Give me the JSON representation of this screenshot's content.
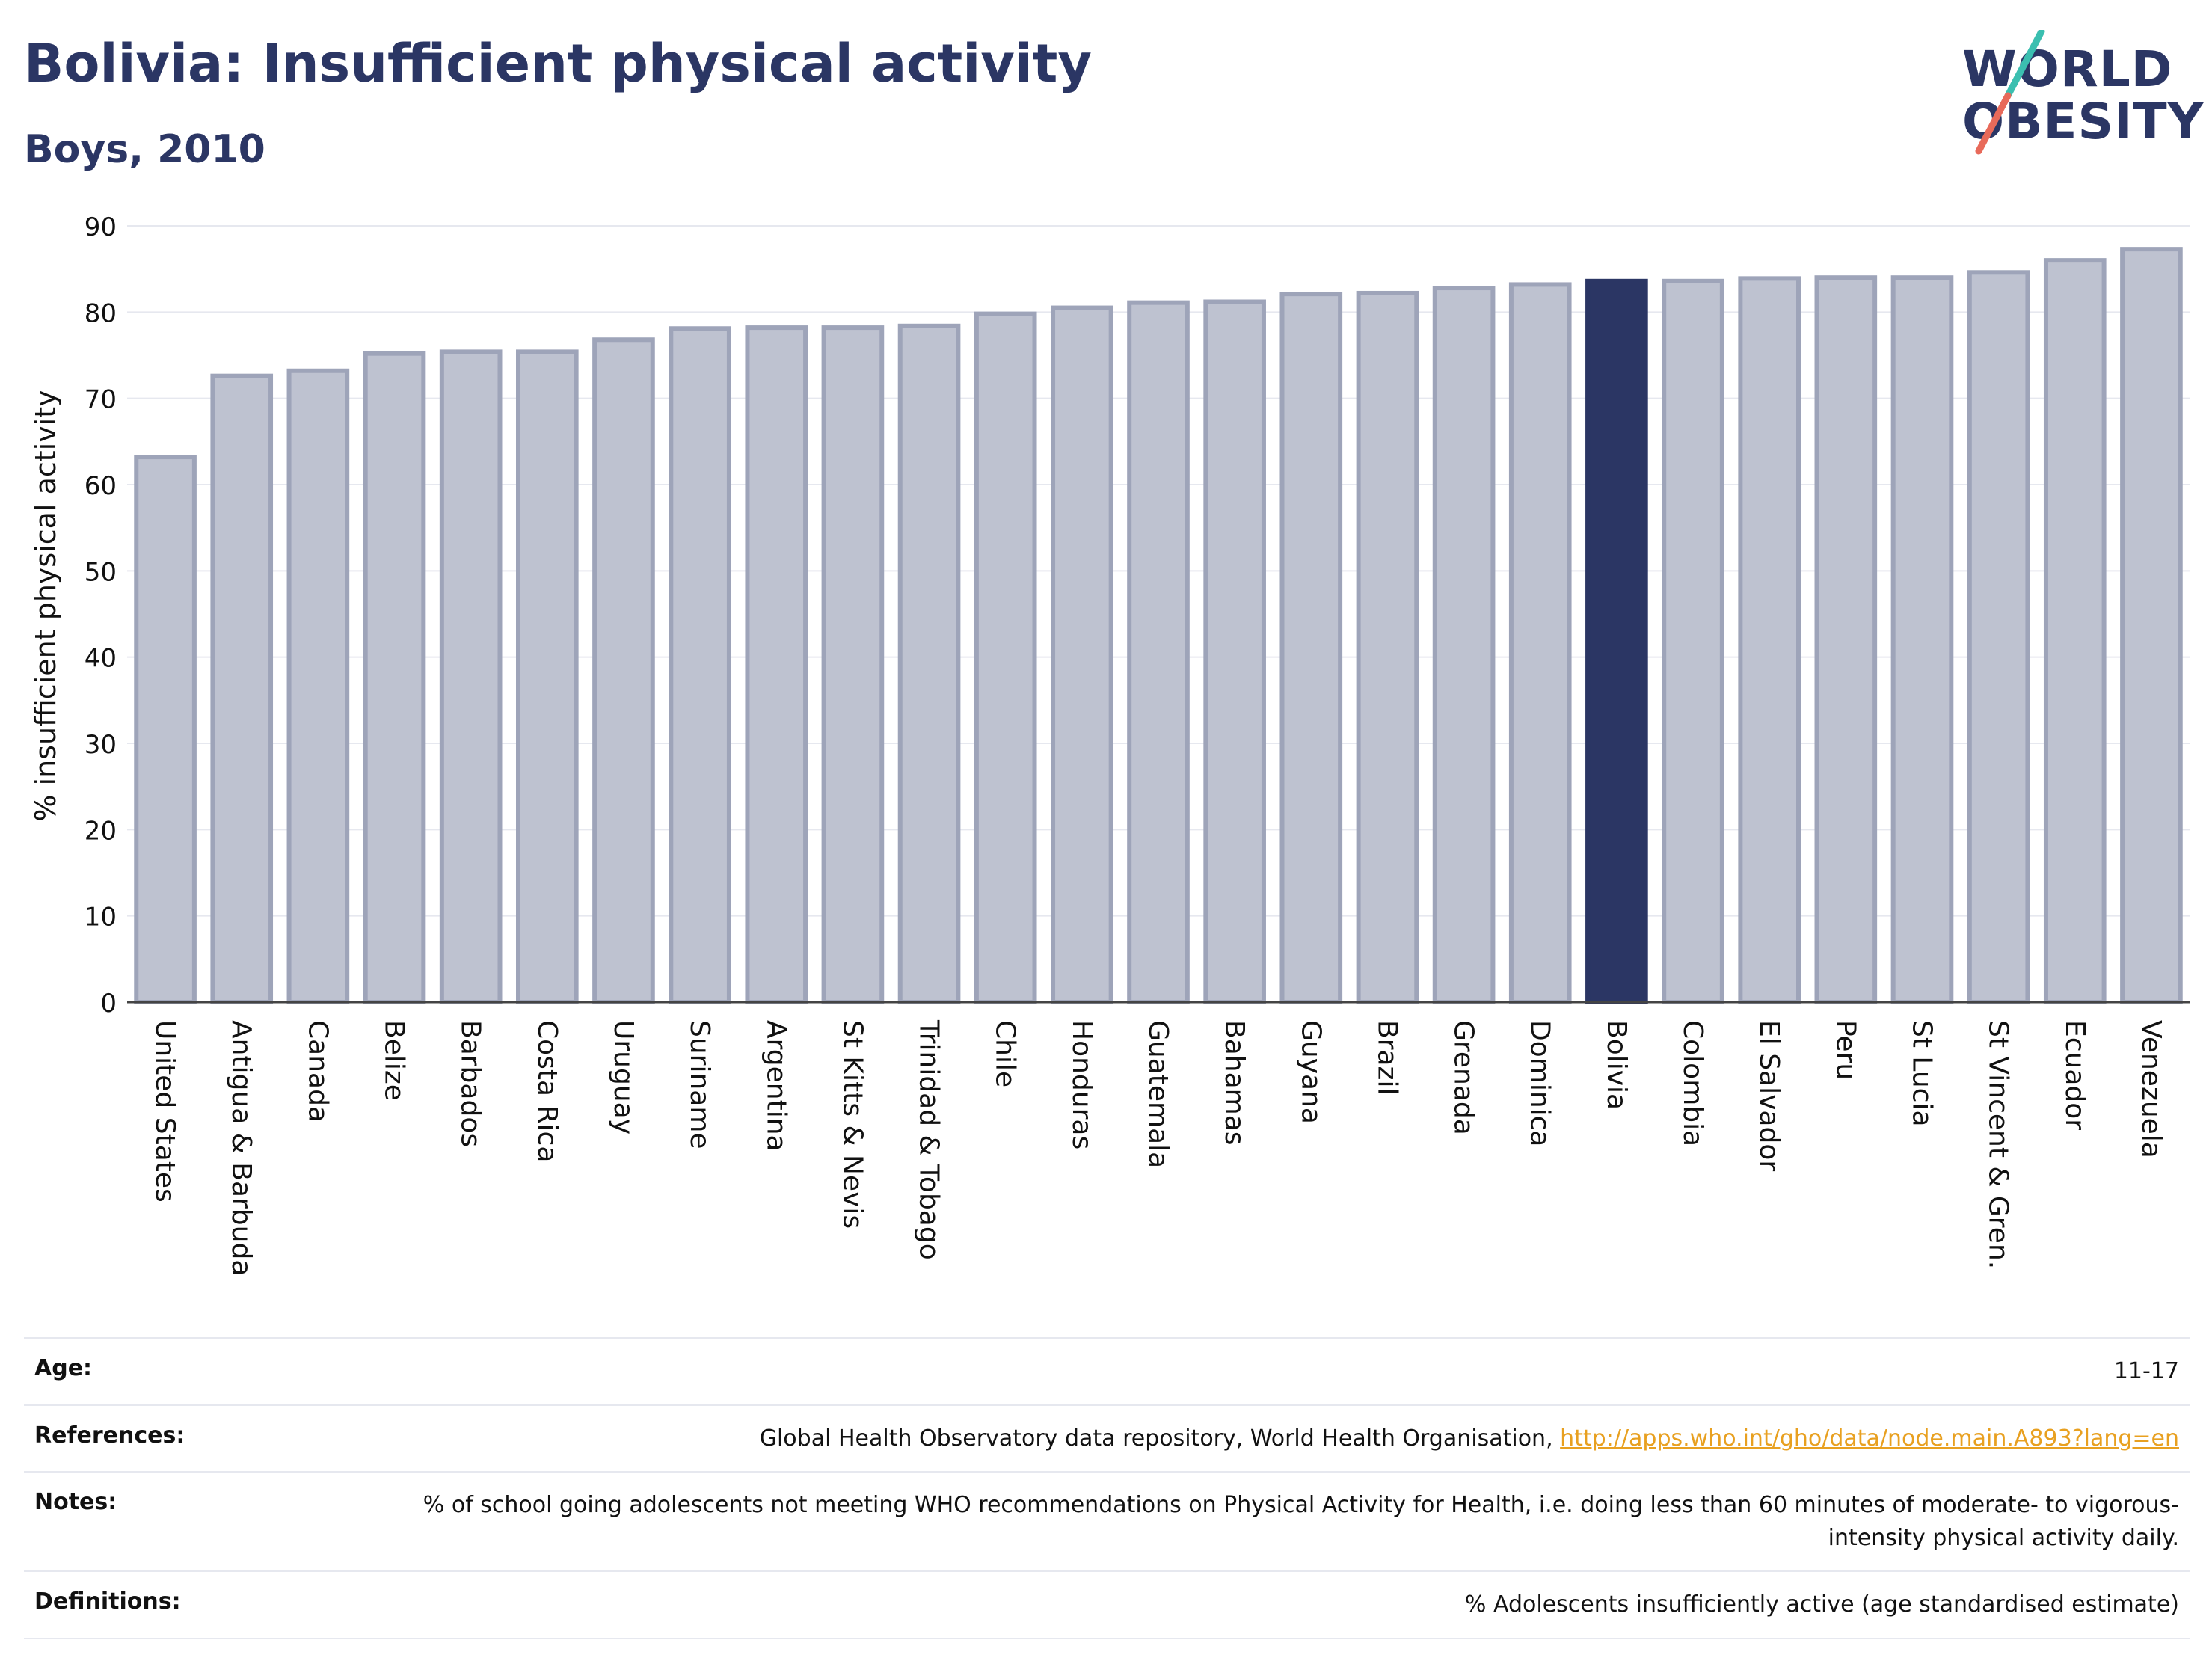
{
  "header": {
    "title": "Bolivia: Insufficient physical activity",
    "subtitle": "Boys, 2010"
  },
  "logo": {
    "line1": "WORLD",
    "line2": "OBESITY"
  },
  "chart_data": {
    "type": "bar",
    "ylabel": "% insufficient physical activity",
    "ylim": [
      0,
      90
    ],
    "yticks": [
      0,
      10,
      20,
      30,
      40,
      50,
      60,
      70,
      80,
      90
    ],
    "grid": true,
    "categories": [
      "United States",
      "Antigua & Barbuda",
      "Canada",
      "Belize",
      "Barbados",
      "Costa Rica",
      "Uruguay",
      "Suriname",
      "Argentina",
      "St Kitts & Nevis",
      "Trinidad & Tobago",
      "Chile",
      "Honduras",
      "Guatemala",
      "Bahamas",
      "Guyana",
      "Brazil",
      "Grenada",
      "Dominica",
      "Bolivia",
      "Colombia",
      "El Salvador",
      "Peru",
      "St Lucia",
      "St Vincent & Gren.",
      "Ecuador",
      "Venezuela"
    ],
    "values": [
      63.2,
      72.6,
      73.2,
      75.2,
      75.4,
      75.4,
      76.8,
      78.1,
      78.2,
      78.2,
      78.4,
      79.8,
      80.5,
      81.1,
      81.2,
      82.1,
      82.2,
      82.8,
      83.2,
      83.6,
      83.6,
      83.9,
      84.0,
      84.0,
      84.6,
      86.0,
      87.3
    ],
    "highlight": "Bolivia",
    "colors": {
      "bar": "#bec2d0",
      "bar_edge": "#9ea4b9",
      "highlight": "#2b3664"
    }
  },
  "info": {
    "age_label": "Age:",
    "age_value": "11-17",
    "references_label": "References:",
    "references_text": "Global Health Observatory data repository, World Health Organisation, ",
    "references_link": "http://apps.who.int/gho/data/node.main.A893?lang=en",
    "notes_label": "Notes:",
    "notes_value": "% of school going adolescents not meeting WHO recommendations on Physical Activity for Health, i.e. doing less than 60 minutes of moderate- to vigorous-intensity physical activity daily.",
    "definitions_label": "Definitions:",
    "definitions_value": "% Adolescents insufficiently active (age standardised estimate)"
  }
}
